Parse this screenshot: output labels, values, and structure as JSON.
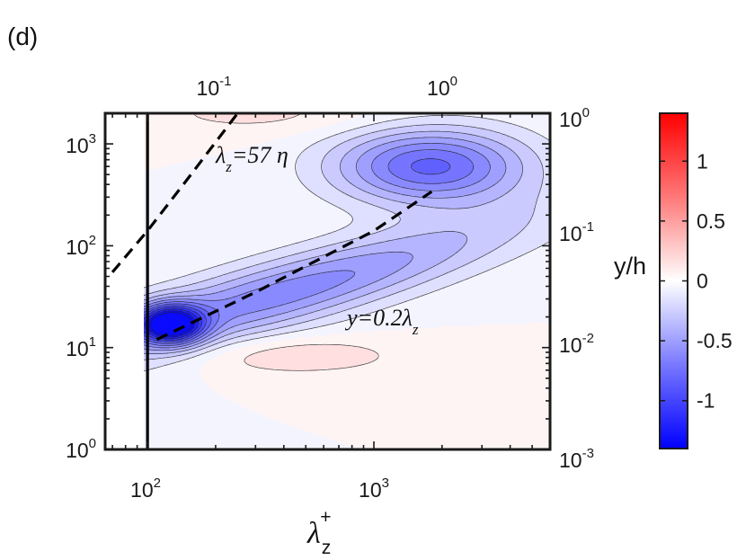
{
  "panel_label": "(d)",
  "chart_data": {
    "type": "heatmap",
    "subtype": "filled-contour",
    "x_bottom": {
      "label_symbol": "λ",
      "label_sub": "z",
      "label_sup": "+",
      "scale": "log",
      "range": [
        65,
        6000
      ],
      "ticks": [
        {
          "base": "10",
          "exp": "2",
          "value": 100
        },
        {
          "base": "10",
          "exp": "3",
          "value": 1000
        }
      ]
    },
    "x_top": {
      "scale": "log",
      "ticks": [
        {
          "base": "10",
          "exp": "-1"
        },
        {
          "base": "10",
          "exp": "0"
        }
      ]
    },
    "y_left": {
      "scale": "log",
      "range": [
        1,
        2000
      ],
      "ticks": [
        {
          "base": "10",
          "exp": "0",
          "value": 1
        },
        {
          "base": "10",
          "exp": "1",
          "value": 10
        },
        {
          "base": "10",
          "exp": "2",
          "value": 100
        },
        {
          "base": "10",
          "exp": "3",
          "value": 1000
        }
      ]
    },
    "y_right": {
      "label": "y/h",
      "scale": "log",
      "ticks": [
        {
          "base": "10",
          "exp": "-3"
        },
        {
          "base": "10",
          "exp": "-2"
        },
        {
          "base": "10",
          "exp": "-1"
        },
        {
          "base": "10",
          "exp": "0"
        }
      ]
    },
    "colorbar": {
      "range": [
        -1.4,
        1.4
      ],
      "ticks": [
        {
          "label": "1",
          "value": 1
        },
        {
          "label": "0.5",
          "value": 0.5
        },
        {
          "label": "0",
          "value": 0
        },
        {
          "label": "-0.5",
          "value": -0.5
        },
        {
          "label": "-1",
          "value": -1
        }
      ],
      "colors": {
        "low": "#0000ff",
        "mid": "#ffffff",
        "high": "#ff0000"
      }
    },
    "contour_levels": 24,
    "features": [
      {
        "sign": "positive",
        "x": 110,
        "y": 250,
        "peak": 0.55
      },
      {
        "sign": "negative",
        "x": 125,
        "y": 17,
        "peak": -1.35
      },
      {
        "sign": "negative",
        "x": 1800,
        "y": 600,
        "peak": -0.85
      },
      {
        "sign": "positive",
        "x": 400,
        "y": 8,
        "peak": 0.22
      }
    ],
    "vertical_line_x": 100,
    "dashed_lines": [
      {
        "label": "λz=57 η",
        "points": [
          [
            70,
            55
          ],
          [
            100,
            140
          ],
          [
            150,
            450
          ],
          [
            250,
            2000
          ]
        ]
      },
      {
        "label": "y=0.2λz",
        "points": [
          [
            110,
            12
          ],
          [
            300,
            35
          ],
          [
            1000,
            140
          ],
          [
            1800,
            340
          ]
        ]
      }
    ],
    "annotations": [
      {
        "symbol": "λ",
        "sub": "z",
        "rest": "=57 η"
      },
      {
        "prefix": "y=0.2",
        "symbol": "λ",
        "sub": "z"
      }
    ]
  }
}
